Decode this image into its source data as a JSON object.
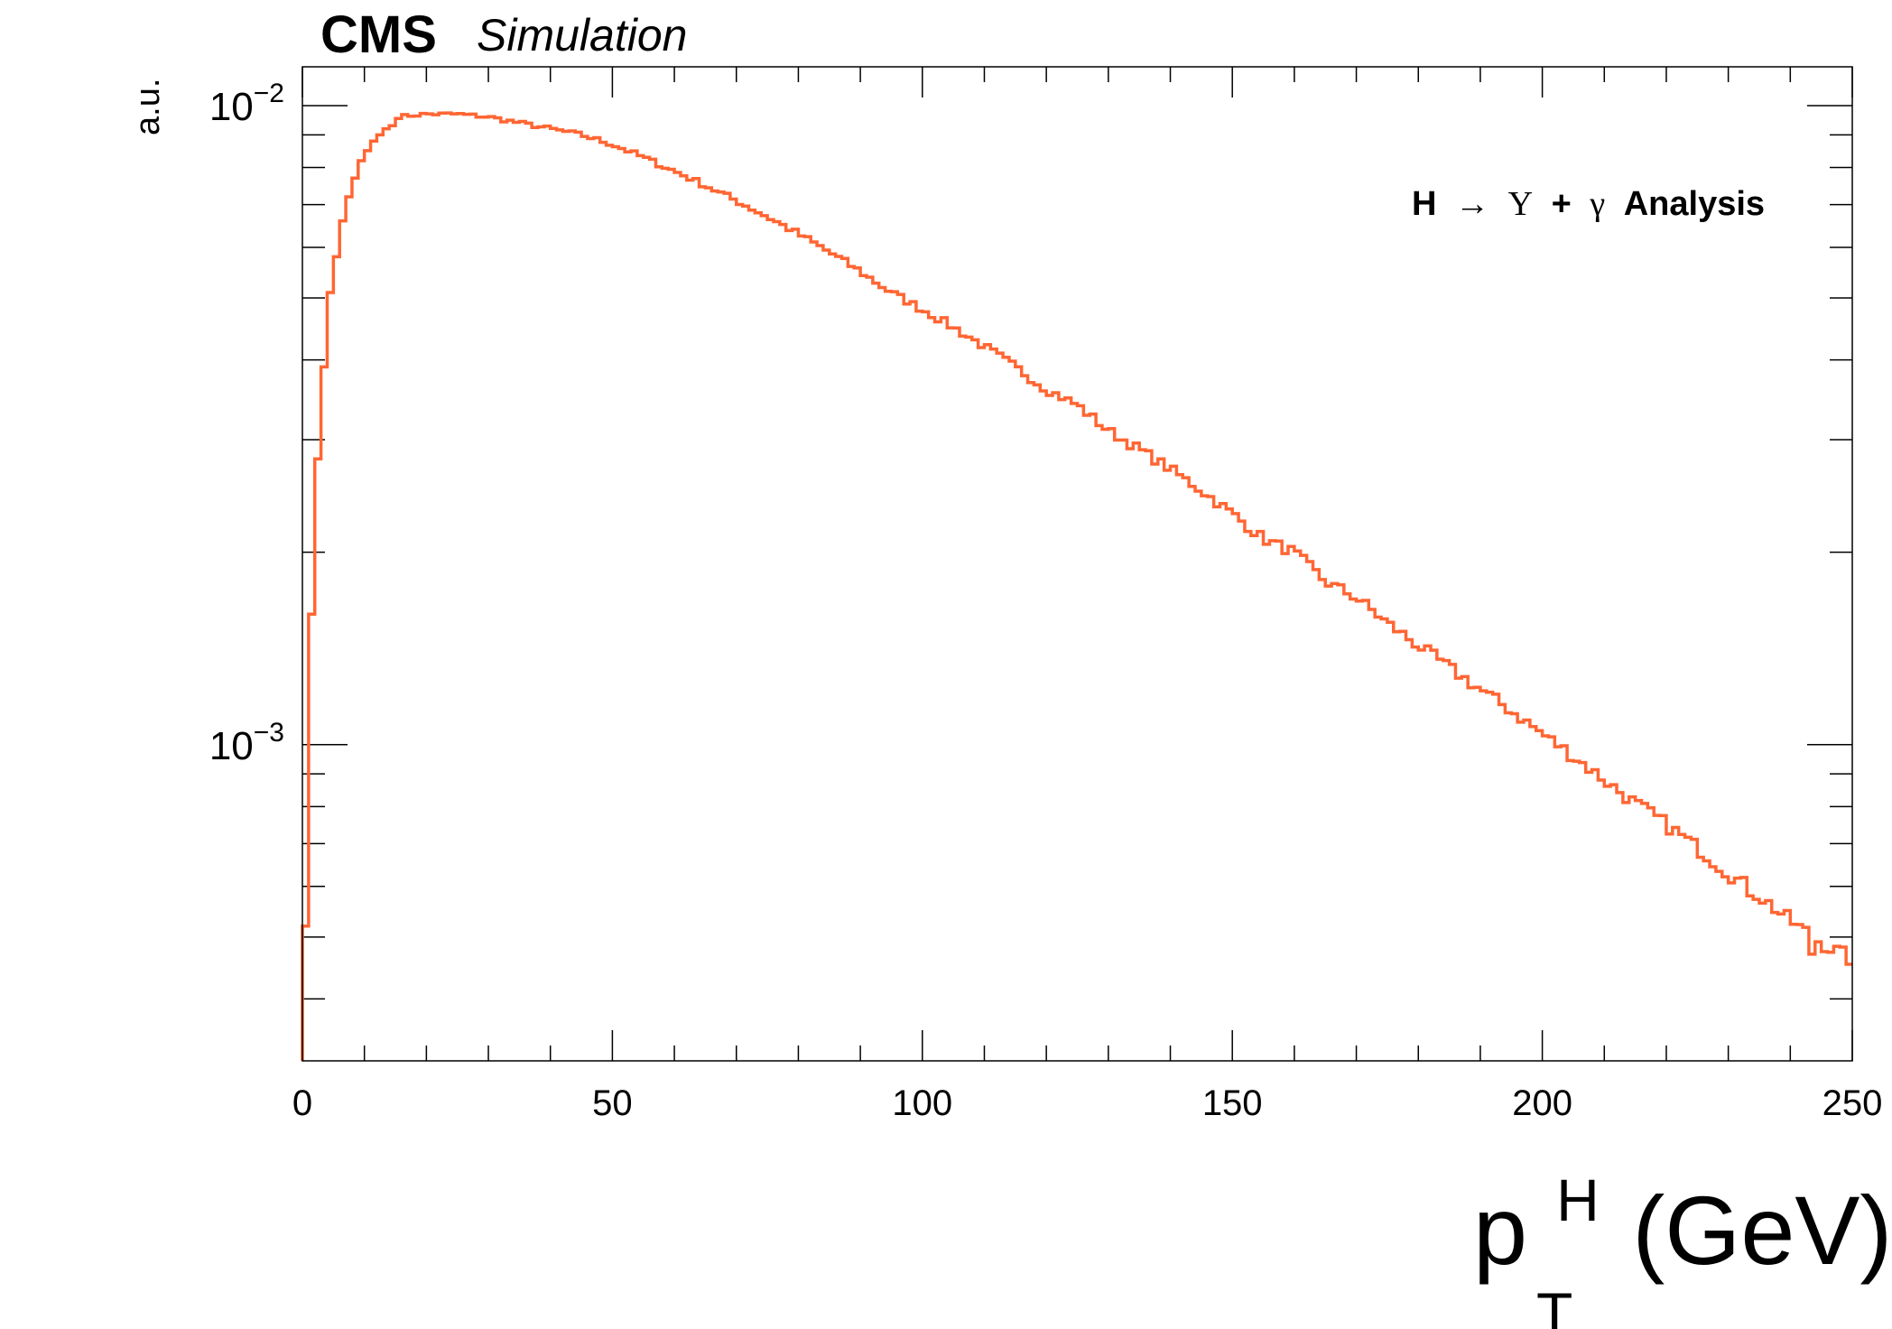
{
  "header": {
    "experiment": "CMS",
    "status": "Simulation"
  },
  "annotation": {
    "pre": "H",
    "arrow": "→",
    "upsilon": "Υ",
    "plus": "+",
    "gamma": "γ",
    "post": "Analysis"
  },
  "axes": {
    "ylabel": "a.u.",
    "xlabel_main": "p",
    "xlabel_sup": "H",
    "xlabel_sub": "T",
    "xlabel_unit": "(GeV)"
  },
  "colors": {
    "line": "#ff6633",
    "frame": "#000000"
  },
  "chart_data": {
    "type": "line",
    "style": "step-histogram",
    "xlim": [
      0,
      250
    ],
    "ylim": [
      0.00032,
      0.0115
    ],
    "yscale": "log",
    "grid": false,
    "legend": "none",
    "x_ticks": [
      {
        "value": 0,
        "label": "0"
      },
      {
        "value": 50,
        "label": "50"
      },
      {
        "value": 100,
        "label": "100"
      },
      {
        "value": 150,
        "label": "150"
      },
      {
        "value": 200,
        "label": "200"
      },
      {
        "value": 250,
        "label": "250"
      }
    ],
    "y_ticks": [
      {
        "value": 0.01,
        "base": "10",
        "exp": "−2"
      },
      {
        "value": 0.001,
        "base": "10",
        "exp": "−3"
      }
    ],
    "bin_width": 1,
    "x": [
      0,
      5,
      10,
      15,
      20,
      25,
      30,
      35,
      40,
      45,
      50,
      55,
      60,
      65,
      70,
      75,
      80,
      85,
      90,
      95,
      100,
      105,
      110,
      115,
      120,
      125,
      130,
      135,
      140,
      145,
      150,
      155,
      160,
      165,
      170,
      175,
      180,
      185,
      190,
      195,
      200,
      205,
      210,
      215,
      220,
      225,
      230,
      235,
      240,
      245,
      250
    ],
    "values": [
      0.00052,
      0.0072,
      0.0091,
      0.0096,
      0.0097,
      0.0097,
      0.0096,
      0.0094,
      0.0092,
      0.009,
      0.0087,
      0.0083,
      0.0079,
      0.0075,
      0.0071,
      0.0067,
      0.0063,
      0.0059,
      0.0055,
      0.0051,
      0.0048,
      0.0045,
      0.0042,
      0.0039,
      0.0036,
      0.0034,
      0.0031,
      0.0029,
      0.0027,
      0.0025,
      0.0023,
      0.0021,
      0.002,
      0.0018,
      0.0017,
      0.00155,
      0.00143,
      0.00132,
      0.00122,
      0.00113,
      0.00104,
      0.00096,
      0.00088,
      0.00081,
      0.00075,
      0.00069,
      0.00063,
      0.00058,
      0.00053,
      0.00049,
      0.00046
    ],
    "peak_annotations": [
      {
        "x": 209,
        "y": 0.00088
      },
      {
        "x": 233,
        "y": 0.00058
      },
      {
        "x": 243,
        "y": 0.00047
      }
    ]
  }
}
